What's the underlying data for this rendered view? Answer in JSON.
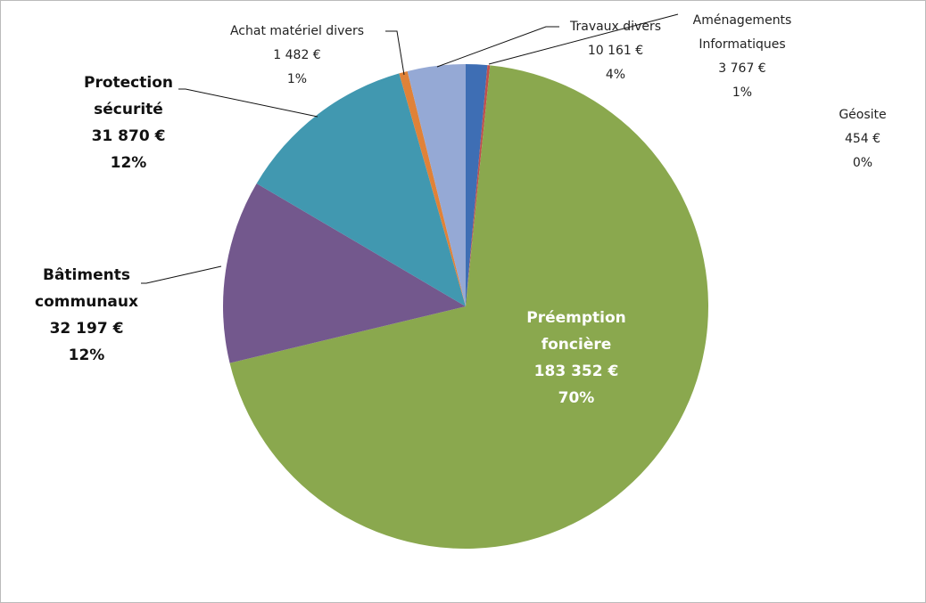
{
  "chart_data": {
    "type": "pie",
    "categories": [
      "Aménagements Informatiques",
      "Géosite",
      "Préemption foncière",
      "Bâtiments communaux",
      "Protection sécurité",
      "Achat matériel divers",
      "Travaux divers"
    ],
    "values": [
      3767,
      454,
      183352,
      32197,
      31870,
      1482,
      10161
    ],
    "value_labels": [
      "3 767 €",
      "454 €",
      "183 352 €",
      "32 197 €",
      "31 870 €",
      "1 482 €",
      "10 161 €"
    ],
    "percent_labels": [
      "1%",
      "0%",
      "70%",
      "12%",
      "12%",
      "1%",
      "4%"
    ],
    "colors": [
      "#3e6eb4",
      "#c0504d",
      "#8aa84e",
      "#73588d",
      "#4198b0",
      "#e08238",
      "#95a9d5"
    ]
  }
}
